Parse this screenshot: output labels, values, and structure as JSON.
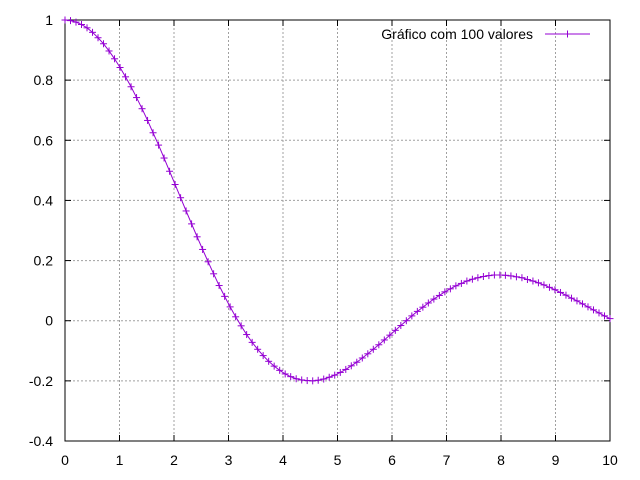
{
  "chart_data": {
    "type": "line",
    "title": "",
    "xlabel": "",
    "ylabel": "",
    "xlim": [
      0,
      10
    ],
    "ylim": [
      -0.4,
      1
    ],
    "x_ticks": [
      0,
      1,
      2,
      3,
      4,
      5,
      6,
      7,
      8,
      9,
      10
    ],
    "y_ticks": [
      -0.4,
      -0.2,
      0,
      0.2,
      0.4,
      0.6,
      0.8,
      1
    ],
    "x_tick_labels": [
      "0",
      "1",
      "2",
      "3",
      "4",
      "5",
      "6",
      "7",
      "8",
      "9",
      "10"
    ],
    "y_tick_labels": [
      "-0.4",
      "-0.2",
      "0",
      "0.2",
      "0.4",
      "0.6",
      "0.8",
      "1"
    ],
    "grid": true,
    "legend_position": "top-right",
    "series": [
      {
        "name": "Gráfico com 100 valores",
        "color": "#9400d3",
        "marker": "plus",
        "x": [
          0.0,
          0.101,
          0.202,
          0.303,
          0.404,
          0.505,
          0.606,
          0.707,
          0.808,
          0.909,
          1.01,
          1.111,
          1.212,
          1.313,
          1.414,
          1.515,
          1.616,
          1.717,
          1.818,
          1.919,
          2.02,
          2.121,
          2.222,
          2.323,
          2.424,
          2.525,
          2.626,
          2.727,
          2.828,
          2.929,
          3.03,
          3.131,
          3.232,
          3.333,
          3.434,
          3.535,
          3.636,
          3.737,
          3.838,
          3.939,
          4.04,
          4.141,
          4.242,
          4.343,
          4.444,
          4.545,
          4.646,
          4.747,
          4.848,
          4.949,
          5.051,
          5.152,
          5.253,
          5.354,
          5.455,
          5.556,
          5.657,
          5.758,
          5.859,
          5.96,
          6.061,
          6.162,
          6.263,
          6.364,
          6.465,
          6.566,
          6.667,
          6.768,
          6.869,
          6.97,
          7.071,
          7.172,
          7.273,
          7.374,
          7.475,
          7.576,
          7.677,
          7.778,
          7.879,
          7.98,
          8.081,
          8.182,
          8.283,
          8.384,
          8.485,
          8.586,
          8.687,
          8.788,
          8.889,
          8.99,
          9.091,
          9.192,
          9.293,
          9.394,
          9.495,
          9.596,
          9.697,
          9.798,
          9.899,
          10.0
        ],
        "y": [
          1.0,
          0.998,
          0.993,
          0.985,
          0.974,
          0.959,
          0.941,
          0.921,
          0.897,
          0.871,
          0.842,
          0.811,
          0.778,
          0.742,
          0.705,
          0.666,
          0.625,
          0.584,
          0.541,
          0.497,
          0.453,
          0.409,
          0.365,
          0.322,
          0.279,
          0.237,
          0.196,
          0.156,
          0.117,
          0.081,
          0.046,
          0.013,
          -0.017,
          -0.046,
          -0.072,
          -0.095,
          -0.116,
          -0.135,
          -0.151,
          -0.165,
          -0.177,
          -0.186,
          -0.193,
          -0.197,
          -0.199,
          -0.2,
          -0.198,
          -0.194,
          -0.188,
          -0.181,
          -0.172,
          -0.162,
          -0.15,
          -0.138,
          -0.124,
          -0.11,
          -0.095,
          -0.08,
          -0.064,
          -0.048,
          -0.032,
          -0.016,
          0.0,
          0.016,
          0.031,
          0.045,
          0.059,
          0.072,
          0.084,
          0.096,
          0.106,
          0.116,
          0.124,
          0.132,
          0.138,
          0.143,
          0.147,
          0.15,
          0.152,
          0.152,
          0.151,
          0.149,
          0.146,
          0.143,
          0.137,
          0.132,
          0.126,
          0.119,
          0.111,
          0.103,
          0.094,
          0.085,
          0.075,
          0.066,
          0.056,
          0.046,
          0.036,
          0.026,
          0.016,
          0.007
        ]
      }
    ]
  }
}
